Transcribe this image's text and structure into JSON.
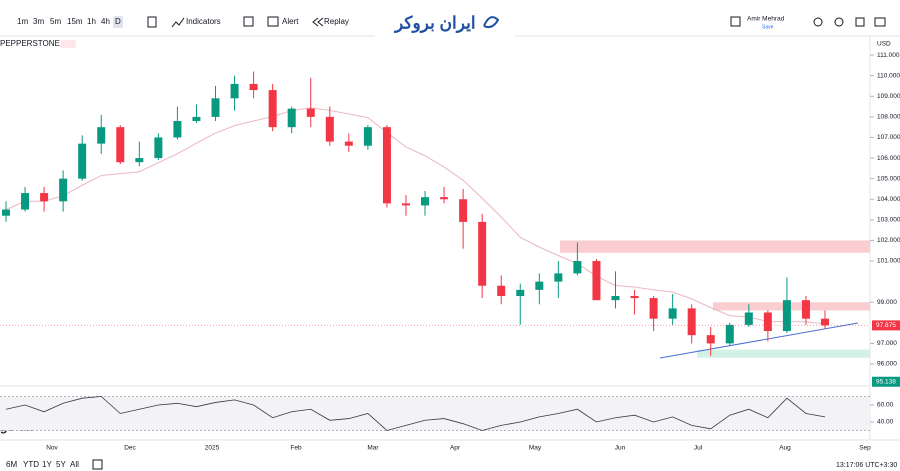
{
  "toolbar": {
    "intervals": [
      "1m",
      "3m",
      "5m",
      "15m",
      "1h",
      "4h",
      "D"
    ],
    "indicators": "Indicators",
    "alert": "Alert",
    "replay": "Replay",
    "logo": "ایران بروکر",
    "user": "Amir Mehrad",
    "save": "Save"
  },
  "chart_data": {
    "type": "candlestick",
    "symbol": "PEPPERSTONE",
    "currency": "USD",
    "open": [
      103.2,
      103.5,
      104.3,
      103.9,
      105.0,
      106.7,
      107.5,
      105.8,
      106.0,
      107.0,
      107.8,
      108.0,
      108.9,
      109.6,
      109.3,
      107.5,
      108.4,
      108.0,
      106.8,
      106.6,
      107.5,
      103.8,
      103.7,
      104.1,
      104.0,
      102.9,
      99.8,
      99.3,
      99.6,
      100.0,
      100.4,
      101.0,
      99.1,
      99.3,
      99.2,
      98.2,
      98.7,
      97.4,
      97.0,
      97.9,
      98.5,
      97.6,
      99.1,
      98.2
    ],
    "high": [
      103.9,
      104.6,
      104.6,
      105.4,
      107.1,
      108.1,
      107.6,
      106.8,
      107.2,
      108.5,
      108.6,
      109.5,
      110.0,
      110.2,
      109.6,
      108.5,
      109.9,
      108.5,
      107.2,
      107.6,
      107.6,
      104.2,
      104.4,
      104.6,
      104.5,
      103.3,
      100.3,
      99.9,
      100.4,
      101.0,
      101.9,
      101.1,
      100.5,
      99.6,
      99.3,
      99.4,
      98.9,
      97.8,
      98.0,
      98.9,
      98.6,
      100.2,
      99.3,
      98.6
    ],
    "low": [
      102.9,
      103.4,
      103.4,
      103.4,
      104.9,
      106.2,
      105.7,
      105.6,
      105.9,
      106.9,
      107.7,
      107.8,
      108.3,
      108.9,
      107.3,
      107.2,
      107.5,
      106.6,
      106.3,
      106.4,
      103.6,
      103.2,
      103.2,
      103.8,
      101.6,
      99.2,
      98.9,
      97.9,
      98.9,
      99.2,
      100.3,
      99.1,
      98.7,
      98.4,
      97.6,
      97.9,
      97.0,
      96.4,
      96.9,
      97.8,
      97.1,
      97.5,
      97.9,
      97.7
    ],
    "close": [
      103.5,
      104.3,
      103.9,
      105.0,
      106.7,
      107.5,
      105.8,
      106.0,
      107.0,
      107.8,
      108.0,
      108.9,
      109.6,
      109.3,
      107.5,
      108.4,
      108.0,
      106.8,
      106.6,
      107.5,
      103.8,
      103.7,
      104.1,
      104.0,
      102.9,
      99.8,
      99.3,
      99.6,
      100.0,
      100.4,
      101.0,
      99.1,
      99.3,
      99.2,
      98.2,
      98.7,
      97.4,
      97.0,
      97.9,
      98.5,
      97.6,
      99.1,
      98.2,
      97.875
    ],
    "up_color": "#089981",
    "down_color": "#f23645",
    "ylim": [
      94.98,
      111.49
    ],
    "yticks": [
      {
        "value": 96,
        "label": "96.000"
      },
      {
        "value": 97,
        "label": "97.000"
      },
      {
        "value": 99,
        "label": "99.000"
      },
      {
        "value": 101,
        "label": "101.000"
      },
      {
        "value": 102,
        "label": "102.000"
      },
      {
        "value": 103,
        "label": "103.000"
      },
      {
        "value": 104,
        "label": "104.000"
      },
      {
        "value": 105,
        "label": "105.000"
      },
      {
        "value": 106,
        "label": "106.000"
      },
      {
        "value": 107,
        "label": "107.000"
      },
      {
        "value": 108,
        "label": "108.000"
      },
      {
        "value": 109,
        "label": "109.000"
      },
      {
        "value": 110,
        "label": "110.000"
      },
      {
        "value": 111,
        "label": "111.000"
      }
    ],
    "time_labels": [
      "Nov",
      "Dec",
      "2025",
      "Feb",
      "Mar",
      "Apr",
      "May",
      "Jun",
      "Jul",
      "Aug",
      "Sep"
    ],
    "zones": [
      {
        "low": 101.4,
        "high": 102.0,
        "color": "#f9c5c9"
      },
      {
        "low": 98.6,
        "high": 99.0,
        "color": "#f9c5c9"
      },
      {
        "low": 96.3,
        "high": 96.7,
        "color": "#cdeee1"
      }
    ],
    "trendline": {
      "values": [
        96.29,
        97.99
      ],
      "color": "#4a6fd6"
    },
    "marker_price": 95.138,
    "rsi": {
      "values": [
        55,
        60,
        52,
        62,
        68,
        70,
        50,
        55,
        60,
        62,
        58,
        63,
        66,
        60,
        45,
        52,
        55,
        42,
        44,
        50,
        30,
        36,
        42,
        44,
        38,
        30,
        36,
        40,
        46,
        50,
        55,
        40,
        45,
        48,
        40,
        46,
        36,
        32,
        48,
        55,
        45,
        68,
        50,
        46
      ],
      "ylim": [
        23.5,
        80
      ],
      "yticks": [
        {
          "value": 40,
          "label": "40.00"
        },
        {
          "value": 60,
          "label": "60.00"
        }
      ],
      "band": [
        30,
        70
      ]
    }
  },
  "footer": {
    "ranges": [
      "6M",
      "YTD",
      "1Y",
      "5Y",
      "All"
    ],
    "clock": "13:17:06 UTC+3:30",
    "brand_fragment": "gView"
  }
}
